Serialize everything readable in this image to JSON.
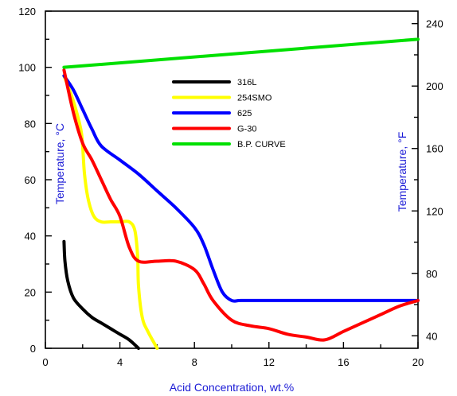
{
  "chart_data": {
    "type": "line",
    "title": "",
    "xlabel": "Acid Concentration, wt.%",
    "ylabel_left": "Temperature, °C",
    "ylabel_right": "Temperature, °F",
    "xlim": [
      0,
      20
    ],
    "ylim_left": [
      0,
      120
    ],
    "ylim_right_f": [
      32,
      248
    ],
    "x_ticks": [
      0,
      4,
      8,
      12,
      16,
      20
    ],
    "y_left_ticks": [
      0,
      20,
      40,
      60,
      80,
      100,
      120
    ],
    "y_right_ticks": [
      40,
      80,
      120,
      160,
      200,
      240
    ],
    "grid": false,
    "legend_position": "upper-middle",
    "series": [
      {
        "name": "316L",
        "color": "#000000",
        "x": [
          1.0,
          1.05,
          1.2,
          1.5,
          2.0,
          2.5,
          3.0,
          3.5,
          4.0,
          4.5,
          5.0
        ],
        "y": [
          38,
          31,
          24,
          18,
          14,
          11,
          9,
          7,
          5,
          3,
          0
        ]
      },
      {
        "name": "254SMO",
        "color": "#ffff00",
        "x": [
          1.0,
          1.5,
          1.9,
          2.0,
          2.1,
          2.3,
          2.6,
          3.0,
          3.5,
          4.0,
          4.5,
          4.8,
          4.95,
          5.0,
          5.2,
          5.5,
          6.0
        ],
        "y": [
          97,
          88,
          78,
          72,
          62,
          53,
          47,
          45,
          45,
          45,
          45,
          42,
          33,
          22,
          11,
          6,
          0
        ]
      },
      {
        "name": "625",
        "color": "#0000ff",
        "x": [
          1.0,
          1.5,
          2.0,
          2.5,
          3.0,
          4.0,
          5.0,
          6.0,
          7.0,
          8.0,
          8.5,
          9.0,
          9.5,
          10.0,
          10.5,
          12.0,
          14.0,
          16.0,
          18.0,
          20.0
        ],
        "y": [
          97,
          92,
          85,
          78,
          72,
          67,
          62,
          56,
          50,
          43,
          37,
          28,
          20,
          17,
          17,
          17,
          17,
          17,
          17,
          17
        ]
      },
      {
        "name": "G-30",
        "color": "#ff0000",
        "x": [
          1.0,
          1.5,
          2.0,
          2.5,
          3.0,
          3.5,
          4.0,
          4.5,
          5.0,
          6.0,
          7.0,
          8.0,
          8.5,
          9.0,
          10.0,
          11.0,
          12.0,
          13.0,
          14.0,
          15.0,
          16.0,
          17.0,
          18.0,
          19.0,
          20.0
        ],
        "y": [
          99,
          84,
          73,
          67,
          60,
          53,
          47,
          36,
          31,
          31,
          31,
          28,
          23,
          17,
          10,
          8,
          7,
          5,
          4,
          3,
          6,
          9,
          12,
          15,
          17
        ]
      },
      {
        "name": "B.P. CURVE",
        "color": "#00e000",
        "x": [
          1.0,
          20.0
        ],
        "y": [
          100,
          110
        ]
      }
    ]
  }
}
